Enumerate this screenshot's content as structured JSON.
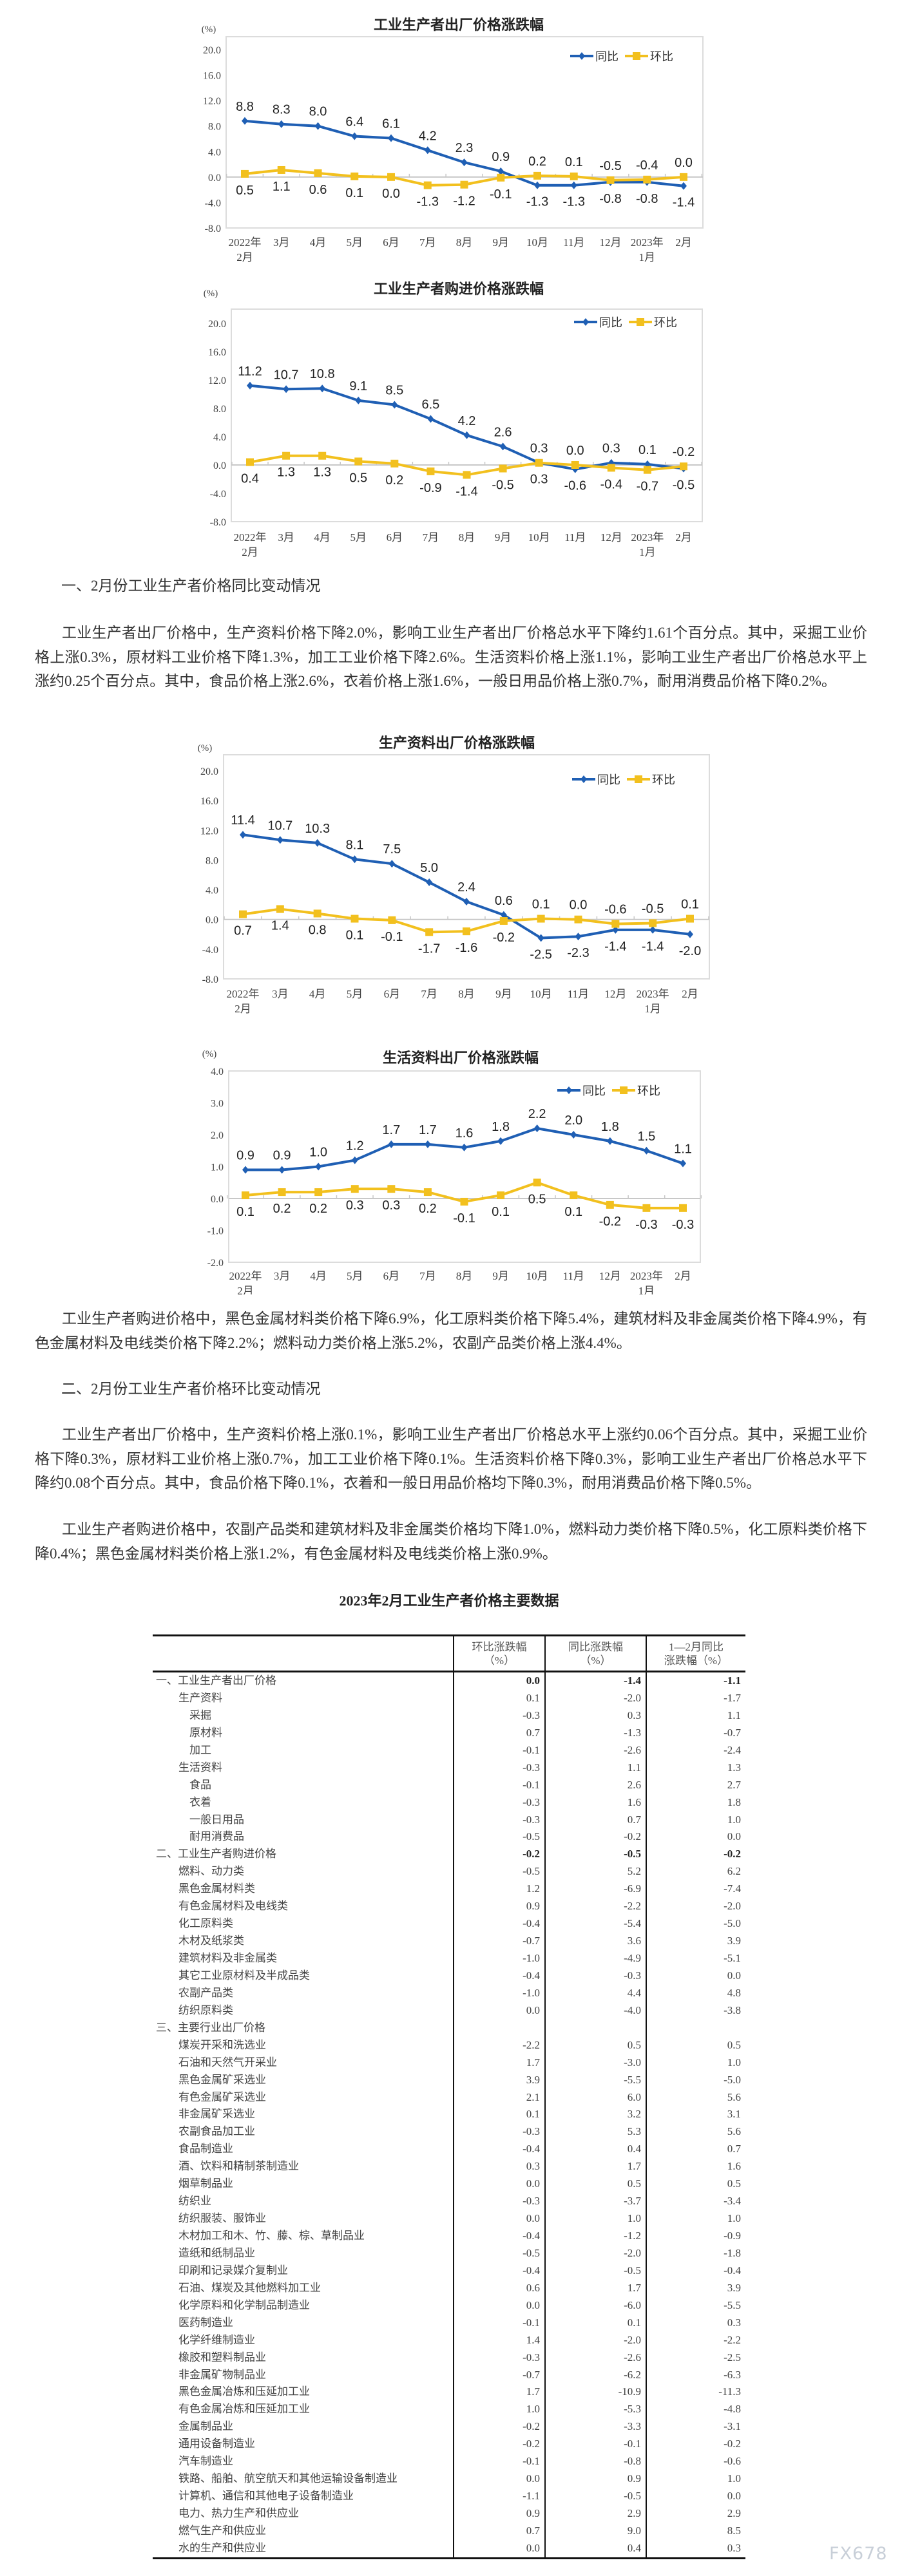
{
  "chart_data": [
    {
      "type": "line",
      "title": "工业生产者出厂价格涨跌幅",
      "unit_label": "(%)",
      "categories": [
        "2022年2月",
        "3月",
        "4月",
        "5月",
        "6月",
        "7月",
        "8月",
        "9月",
        "10月",
        "11月",
        "12月",
        "2023年1月",
        "2月"
      ],
      "ylim": [
        -8,
        20
      ],
      "yticks": [
        "20.0",
        "16.0",
        "12.0",
        "8.0",
        "4.0",
        "0.0",
        "-4.0",
        "-8.0"
      ],
      "legend_position": "top-right",
      "grid": false,
      "series": [
        {
          "name": "同比",
          "color": "#1f5fb4",
          "values": [
            8.8,
            8.3,
            8.0,
            6.4,
            6.1,
            4.2,
            2.3,
            0.9,
            -1.3,
            -1.3,
            -0.8,
            -0.8,
            -1.4
          ]
        },
        {
          "name": "环比",
          "color": "#f2c01e",
          "values": [
            0.5,
            1.1,
            0.6,
            0.1,
            0.0,
            -1.3,
            -1.2,
            -0.1,
            0.2,
            0.1,
            -0.5,
            -0.4,
            0.0
          ]
        }
      ]
    },
    {
      "type": "line",
      "title": "工业生产者购进价格涨跌幅",
      "unit_label": "(%)",
      "categories": [
        "2022年2月",
        "3月",
        "4月",
        "5月",
        "6月",
        "7月",
        "8月",
        "9月",
        "10月",
        "11月",
        "12月",
        "2023年1月",
        "2月"
      ],
      "ylim": [
        -8,
        20
      ],
      "yticks": [
        "20.0",
        "16.0",
        "12.0",
        "8.0",
        "4.0",
        "0.0",
        "-4.0",
        "-8.0"
      ],
      "legend_position": "top-right",
      "grid": false,
      "series": [
        {
          "name": "同比",
          "color": "#1f5fb4",
          "values": [
            11.2,
            10.7,
            10.8,
            9.1,
            8.5,
            6.5,
            4.2,
            2.6,
            0.3,
            -0.6,
            0.3,
            0.1,
            -0.5
          ]
        },
        {
          "name": "环比",
          "color": "#f2c01e",
          "values": [
            0.4,
            1.3,
            1.3,
            0.5,
            0.2,
            -0.9,
            -1.4,
            -0.5,
            0.3,
            0.0,
            -0.4,
            -0.7,
            -0.2
          ]
        }
      ]
    },
    {
      "type": "line",
      "title": "生产资料出厂价格涨跌幅",
      "unit_label": "(%)",
      "categories": [
        "2022年2月",
        "3月",
        "4月",
        "5月",
        "6月",
        "7月",
        "8月",
        "9月",
        "10月",
        "11月",
        "12月",
        "2023年1月",
        "2月"
      ],
      "ylim": [
        -8,
        20
      ],
      "yticks": [
        "20.0",
        "16.0",
        "12.0",
        "8.0",
        "4.0",
        "0.0",
        "-4.0",
        "-8.0"
      ],
      "legend_position": "top-right",
      "grid": false,
      "series": [
        {
          "name": "同比",
          "color": "#1f5fb4",
          "values": [
            11.4,
            10.7,
            10.3,
            8.1,
            7.5,
            5.0,
            2.4,
            0.6,
            -2.5,
            -2.3,
            -1.4,
            -1.4,
            -2.0
          ]
        },
        {
          "name": "环比",
          "color": "#f2c01e",
          "values": [
            0.7,
            1.4,
            0.8,
            0.1,
            -0.1,
            -1.7,
            -1.6,
            -0.2,
            0.1,
            0.0,
            -0.6,
            -0.5,
            0.1
          ]
        }
      ]
    },
    {
      "type": "line",
      "title": "生活资料出厂价格涨跌幅",
      "unit_label": "(%)",
      "categories": [
        "2022年2月",
        "3月",
        "4月",
        "5月",
        "6月",
        "7月",
        "8月",
        "9月",
        "10月",
        "11月",
        "12月",
        "2023年1月",
        "2月"
      ],
      "ylim": [
        -2,
        4
      ],
      "yticks": [
        "4.0",
        "3.0",
        "2.0",
        "1.0",
        "0.0",
        "-1.0",
        "-2.0"
      ],
      "legend_position": "top-right",
      "grid": false,
      "series": [
        {
          "name": "同比",
          "color": "#1f5fb4",
          "values": [
            0.9,
            0.9,
            1.0,
            1.2,
            1.7,
            1.7,
            1.6,
            1.8,
            2.2,
            2.0,
            1.8,
            1.5,
            1.1
          ]
        },
        {
          "name": "环比",
          "color": "#f2c01e",
          "values": [
            0.1,
            0.2,
            0.2,
            0.3,
            0.3,
            0.2,
            -0.1,
            0.1,
            0.5,
            0.1,
            -0.2,
            -0.3,
            -0.3
          ]
        }
      ]
    }
  ],
  "section1": {
    "heading": "一、2月份工业生产者价格同比变动情况",
    "para1": "工业生产者出厂价格中，生产资料价格下降2.0%，影响工业生产者出厂价格总水平下降约1.61个百分点。其中，采掘工业价格上涨0.3%，原材料工业价格下降1.3%，加工工业价格下降2.6%。生活资料价格上涨1.1%，影响工业生产者出厂价格总水平上涨约0.25个百分点。其中，食品价格上涨2.6%，衣着价格上涨1.6%，一般日用品价格上涨0.7%，耐用消费品价格下降0.2%。",
    "para2": "工业生产者购进价格中，黑色金属材料类价格下降6.9%，化工原料类价格下降5.4%，建筑材料及非金属类价格下降4.9%，有色金属材料及电线类价格下降2.2%；燃料动力类价格上涨5.2%，农副产品类价格上涨4.4%。"
  },
  "section2": {
    "heading": "二、2月份工业生产者价格环比变动情况",
    "para1": "工业生产者出厂价格中，生产资料价格上涨0.1%，影响工业生产者出厂价格总水平上涨约0.06个百分点。其中，采掘工业价格下降0.3%，原材料工业价格上涨0.7%，加工工业价格下降0.1%。生活资料价格下降0.3%，影响工业生产者出厂价格总水平下降约0.08个百分点。其中，食品价格下降0.1%，衣着和一般日用品价格均下降0.3%，耐用消费品价格下降0.5%。",
    "para2": "工业生产者购进价格中，农副产品类和建筑材料及非金属类价格均下降1.0%，燃料动力类价格下降0.5%，化工原料类价格下降0.4%；黑色金属材料类价格上涨1.2%，有色金属材料及电线类价格上涨0.9%。"
  },
  "table": {
    "title": "2023年2月工业生产者价格主要数据",
    "headers": [
      {
        "line1": "环比涨跌幅",
        "line2": "（%）"
      },
      {
        "line1": "同比涨跌幅",
        "line2": "（%）"
      },
      {
        "line1": "1—2月同比",
        "line2": "涨跌幅（%）"
      }
    ],
    "rows": [
      {
        "label": "一、工业生产者出厂价格",
        "level": 0,
        "bold": true,
        "mom": "0.0",
        "yoy": "-1.4",
        "ytd": "-1.1"
      },
      {
        "label": "生产资料",
        "level": 1,
        "mom": "0.1",
        "yoy": "-2.0",
        "ytd": "-1.7"
      },
      {
        "label": "采掘",
        "level": 2,
        "mom": "-0.3",
        "yoy": "0.3",
        "ytd": "1.1"
      },
      {
        "label": "原材料",
        "level": 2,
        "mom": "0.7",
        "yoy": "-1.3",
        "ytd": "-0.7"
      },
      {
        "label": "加工",
        "level": 2,
        "mom": "-0.1",
        "yoy": "-2.6",
        "ytd": "-2.4"
      },
      {
        "label": "生活资料",
        "level": 1,
        "mom": "-0.3",
        "yoy": "1.1",
        "ytd": "1.3"
      },
      {
        "label": "食品",
        "level": 2,
        "mom": "-0.1",
        "yoy": "2.6",
        "ytd": "2.7"
      },
      {
        "label": "衣着",
        "level": 2,
        "mom": "-0.3",
        "yoy": "1.6",
        "ytd": "1.8"
      },
      {
        "label": "一般日用品",
        "level": 2,
        "mom": "-0.3",
        "yoy": "0.7",
        "ytd": "1.0"
      },
      {
        "label": "耐用消费品",
        "level": 2,
        "mom": "-0.5",
        "yoy": "-0.2",
        "ytd": "0.0"
      },
      {
        "label": "二、工业生产者购进价格",
        "level": 0,
        "bold": true,
        "mom": "-0.2",
        "yoy": "-0.5",
        "ytd": "-0.2"
      },
      {
        "label": "燃料、动力类",
        "level": 1,
        "mom": "-0.5",
        "yoy": "5.2",
        "ytd": "6.2"
      },
      {
        "label": "黑色金属材料类",
        "level": 1,
        "mom": "1.2",
        "yoy": "-6.9",
        "ytd": "-7.4"
      },
      {
        "label": "有色金属材料及电线类",
        "level": 1,
        "mom": "0.9",
        "yoy": "-2.2",
        "ytd": "-2.0"
      },
      {
        "label": "化工原料类",
        "level": 1,
        "mom": "-0.4",
        "yoy": "-5.4",
        "ytd": "-5.0"
      },
      {
        "label": "木材及纸浆类",
        "level": 1,
        "mom": "-0.7",
        "yoy": "3.6",
        "ytd": "3.9"
      },
      {
        "label": "建筑材料及非金属类",
        "level": 1,
        "mom": "-1.0",
        "yoy": "-4.9",
        "ytd": "-5.1"
      },
      {
        "label": "其它工业原材料及半成品类",
        "level": 1,
        "mom": "-0.4",
        "yoy": "-0.3",
        "ytd": "0.0"
      },
      {
        "label": "农副产品类",
        "level": 1,
        "mom": "-1.0",
        "yoy": "4.4",
        "ytd": "4.8"
      },
      {
        "label": "纺织原料类",
        "level": 1,
        "mom": "0.0",
        "yoy": "-4.0",
        "ytd": "-3.8"
      },
      {
        "label": "三、主要行业出厂价格",
        "level": 0,
        "mom": "",
        "yoy": "",
        "ytd": ""
      },
      {
        "label": "煤炭开采和洗选业",
        "level": 1,
        "mom": "-2.2",
        "yoy": "0.5",
        "ytd": "0.5"
      },
      {
        "label": "石油和天然气开采业",
        "level": 1,
        "mom": "1.7",
        "yoy": "-3.0",
        "ytd": "1.0"
      },
      {
        "label": "黑色金属矿采选业",
        "level": 1,
        "mom": "3.9",
        "yoy": "-5.5",
        "ytd": "-5.0"
      },
      {
        "label": "有色金属矿采选业",
        "level": 1,
        "mom": "2.1",
        "yoy": "6.0",
        "ytd": "5.6"
      },
      {
        "label": "非金属矿采选业",
        "level": 1,
        "mom": "0.1",
        "yoy": "3.2",
        "ytd": "3.1"
      },
      {
        "label": "农副食品加工业",
        "level": 1,
        "mom": "-0.3",
        "yoy": "5.3",
        "ytd": "5.6"
      },
      {
        "label": "食品制造业",
        "level": 1,
        "mom": "-0.4",
        "yoy": "0.4",
        "ytd": "0.7"
      },
      {
        "label": "酒、饮料和精制茶制造业",
        "level": 1,
        "mom": "0.3",
        "yoy": "1.7",
        "ytd": "1.6"
      },
      {
        "label": "烟草制品业",
        "level": 1,
        "mom": "0.0",
        "yoy": "0.5",
        "ytd": "0.5"
      },
      {
        "label": "纺织业",
        "level": 1,
        "mom": "-0.3",
        "yoy": "-3.7",
        "ytd": "-3.4"
      },
      {
        "label": "纺织服装、服饰业",
        "level": 1,
        "mom": "0.0",
        "yoy": "1.0",
        "ytd": "1.0"
      },
      {
        "label": "木材加工和木、竹、藤、棕、草制品业",
        "level": 1,
        "mom": "-0.4",
        "yoy": "-1.2",
        "ytd": "-0.9"
      },
      {
        "label": "造纸和纸制品业",
        "level": 1,
        "mom": "-0.5",
        "yoy": "-2.0",
        "ytd": "-1.8"
      },
      {
        "label": "印刷和记录媒介复制业",
        "level": 1,
        "mom": "-0.4",
        "yoy": "-0.5",
        "ytd": "-0.4"
      },
      {
        "label": "石油、煤炭及其他燃料加工业",
        "level": 1,
        "mom": "0.6",
        "yoy": "1.7",
        "ytd": "3.9"
      },
      {
        "label": "化学原料和化学制品制造业",
        "level": 1,
        "mom": "0.0",
        "yoy": "-6.0",
        "ytd": "-5.5"
      },
      {
        "label": "医药制造业",
        "level": 1,
        "mom": "-0.1",
        "yoy": "0.1",
        "ytd": "0.3"
      },
      {
        "label": "化学纤维制造业",
        "level": 1,
        "mom": "1.4",
        "yoy": "-2.0",
        "ytd": "-2.2"
      },
      {
        "label": "橡胶和塑料制品业",
        "level": 1,
        "mom": "-0.3",
        "yoy": "-2.6",
        "ytd": "-2.5"
      },
      {
        "label": "非金属矿物制品业",
        "level": 1,
        "mom": "-0.7",
        "yoy": "-6.2",
        "ytd": "-6.3"
      },
      {
        "label": "黑色金属冶炼和压延加工业",
        "level": 1,
        "mom": "1.7",
        "yoy": "-10.9",
        "ytd": "-11.3"
      },
      {
        "label": "有色金属冶炼和压延加工业",
        "level": 1,
        "mom": "1.0",
        "yoy": "-5.3",
        "ytd": "-4.8"
      },
      {
        "label": "金属制品业",
        "level": 1,
        "mom": "-0.2",
        "yoy": "-3.3",
        "ytd": "-3.1"
      },
      {
        "label": "通用设备制造业",
        "level": 1,
        "mom": "-0.2",
        "yoy": "-0.1",
        "ytd": "-0.2"
      },
      {
        "label": "汽车制造业",
        "level": 1,
        "mom": "-0.1",
        "yoy": "-0.8",
        "ytd": "-0.6"
      },
      {
        "label": "铁路、船舶、航空航天和其他运输设备制造业",
        "level": 1,
        "mom": "0.0",
        "yoy": "0.9",
        "ytd": "1.0"
      },
      {
        "label": "计算机、通信和其他电子设备制造业",
        "level": 1,
        "mom": "-1.1",
        "yoy": "-0.5",
        "ytd": "0.0"
      },
      {
        "label": "电力、热力生产和供应业",
        "level": 1,
        "mom": "0.9",
        "yoy": "2.9",
        "ytd": "2.9"
      },
      {
        "label": "燃气生产和供应业",
        "level": 1,
        "mom": "0.7",
        "yoy": "9.0",
        "ytd": "8.5"
      },
      {
        "label": "水的生产和供应业",
        "level": 1,
        "mom": "0.0",
        "yoy": "0.4",
        "ytd": "0.3"
      }
    ]
  },
  "watermark": "FX678"
}
